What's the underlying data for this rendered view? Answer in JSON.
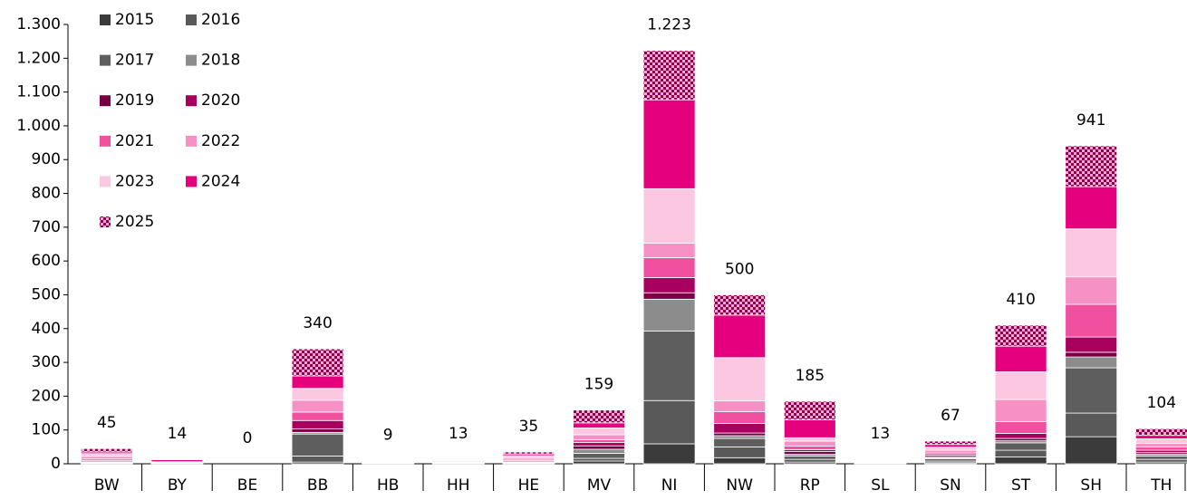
{
  "chart_data": {
    "type": "stacked-bar",
    "categories": [
      "BW",
      "BY",
      "BE",
      "BB",
      "HB",
      "HH",
      "HE",
      "MV",
      "NI",
      "NW",
      "RP",
      "SL",
      "SN",
      "ST",
      "SH",
      "TH"
    ],
    "ylim": [
      0,
      1300
    ],
    "yticks": [
      0,
      100,
      200,
      300,
      400,
      500,
      600,
      700,
      800,
      900,
      {
        "value": 1000,
        "label": "1.000"
      },
      {
        "value": 1100,
        "label": "1.100"
      },
      {
        "value": 1200,
        "label": "1.200"
      },
      {
        "value": 1300,
        "label": "1.300"
      }
    ],
    "totals": [
      45,
      14,
      0,
      340,
      9,
      13,
      35,
      159,
      1223,
      500,
      185,
      13,
      67,
      410,
      941,
      104
    ],
    "totals_value_labels": [
      "45",
      "14",
      "0",
      "340",
      "9",
      "13",
      "35",
      "159",
      "1.223",
      "500",
      "185",
      "13",
      "67",
      "410",
      "941",
      "104"
    ],
    "series": [
      {
        "name": "2015",
        "color": "#3b3b3b",
        "values": [
          0,
          0,
          0,
          5,
          0,
          0,
          0,
          8,
          59,
          18,
          5,
          0,
          3,
          20,
          80,
          5
        ]
      },
      {
        "name": "2016",
        "color": "#595959",
        "values": [
          1,
          0,
          0,
          18,
          0,
          0,
          1,
          8,
          128,
          32,
          8,
          0,
          5,
          20,
          70,
          8
        ]
      },
      {
        "name": "2017",
        "color": "#5e5e5e",
        "values": [
          2,
          0,
          0,
          65,
          1,
          1,
          2,
          15,
          206,
          25,
          10,
          1,
          7,
          22,
          134,
          10
        ]
      },
      {
        "name": "2018",
        "color": "#8c8c8c",
        "values": [
          1,
          0,
          0,
          5,
          0,
          0,
          1,
          12,
          94,
          8,
          5,
          0,
          3,
          6,
          32,
          5
        ]
      },
      {
        "name": "2019",
        "color": "#7a0045",
        "values": [
          2,
          0,
          0,
          10,
          0,
          1,
          2,
          10,
          19,
          8,
          8,
          1,
          3,
          7,
          14,
          5
        ]
      },
      {
        "name": "2020",
        "color": "#a8005f",
        "values": [
          3,
          1,
          0,
          25,
          1,
          1,
          3,
          10,
          45,
          28,
          6,
          1,
          5,
          15,
          45,
          7
        ]
      },
      {
        "name": "2021",
        "color": "#f0509f",
        "values": [
          5,
          1,
          0,
          25,
          1,
          1,
          4,
          8,
          59,
          35,
          10,
          2,
          6,
          35,
          97,
          10
        ]
      },
      {
        "name": "2022",
        "color": "#f790c4",
        "values": [
          8,
          2,
          0,
          35,
          1,
          2,
          5,
          15,
          43,
          32,
          15,
          2,
          8,
          65,
          81,
          10
        ]
      },
      {
        "name": "2023",
        "color": "#fcc8e1",
        "values": [
          8,
          2,
          0,
          35,
          2,
          3,
          6,
          20,
          161,
          128,
          10,
          2,
          9,
          82,
          142,
          14
        ]
      },
      {
        "name": "2024",
        "color": "#e5007d",
        "values": [
          5,
          6,
          0,
          37,
          1,
          2,
          5,
          15,
          263,
          126,
          53,
          2,
          8,
          76,
          125,
          10
        ]
      },
      {
        "name": "2025",
        "color": "#8b0050",
        "pattern": "checker",
        "values": [
          10,
          2,
          0,
          80,
          2,
          2,
          6,
          38,
          146,
          60,
          55,
          2,
          10,
          62,
          121,
          20
        ]
      }
    ]
  }
}
